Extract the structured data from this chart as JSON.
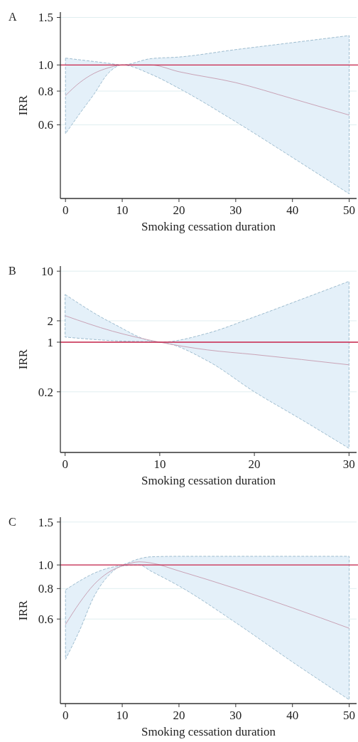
{
  "chart_data": [
    {
      "type": "line",
      "title": "A",
      "xlabel": "Smoking cessation duration",
      "ylabel": "IRR",
      "log": "y",
      "grid": "y",
      "xlim": [
        -0.9,
        51.3
      ],
      "xticks": [
        0,
        10,
        20,
        30,
        40,
        50
      ],
      "ylim": [
        0.32,
        1.57
      ],
      "yticks": [
        1.5,
        {
          "value": 1,
          "label": "1.0"
        },
        0.8,
        0.6
      ],
      "ref_lines": [
        {
          "axis": "y",
          "value": 1,
          "color": "#c8234a"
        }
      ],
      "series": [
        {
          "color": "#c9a3b6",
          "x": [
            0,
            2.5,
            5,
            7.5,
            10,
            15,
            20,
            30,
            40,
            50
          ],
          "values": [
            0.77,
            0.86,
            0.93,
            0.975,
            1.0,
            1.0,
            0.944,
            0.86,
            0.75,
            0.652
          ],
          "lower": [
            0.556,
            0.66,
            0.778,
            0.93,
            1.0,
            0.925,
            0.819,
            0.616,
            0.454,
            0.333
          ],
          "upper": [
            1.06,
            1.045,
            1.03,
            1.015,
            1.0,
            1.055,
            1.07,
            1.14,
            1.21,
            1.285
          ]
        }
      ]
    },
    {
      "type": "line",
      "title": "B",
      "xlabel": "Smoking cessation duration",
      "ylabel": "IRR",
      "log": "y",
      "grid": "y",
      "xlim": [
        -0.5,
        30.8
      ],
      "xticks": [
        0,
        10,
        20,
        30
      ],
      "ylim": [
        0.028,
        11.8
      ],
      "yticks": [
        10,
        2,
        1,
        0.2
      ],
      "ref_lines": [
        {
          "axis": "y",
          "value": 1,
          "color": "#c8234a"
        }
      ],
      "series": [
        {
          "color": "#c9a3b6",
          "x": [
            0,
            5,
            10,
            15,
            20,
            25,
            30
          ],
          "values": [
            2.36,
            1.43,
            1.0,
            0.78,
            0.67,
            0.57,
            0.48
          ],
          "lower": [
            1.18,
            1.05,
            1.0,
            0.55,
            0.2,
            0.081,
            0.032
          ],
          "upper": [
            4.7,
            1.85,
            1.0,
            1.33,
            2.27,
            4.03,
            7.2
          ]
        }
      ]
    },
    {
      "type": "line",
      "title": "C",
      "xlabel": "Smoking cessation duration",
      "ylabel": "IRR",
      "log": "y",
      "grid": "y",
      "xlim": [
        -0.9,
        51.3
      ],
      "xticks": [
        0,
        10,
        20,
        30,
        40,
        50
      ],
      "ylim": [
        0.27,
        1.57
      ],
      "yticks": [
        1.5,
        {
          "value": 1,
          "label": "1.0"
        },
        0.8,
        0.6
      ],
      "ref_lines": [
        {
          "axis": "y",
          "value": 1,
          "color": "#c8234a"
        }
      ],
      "series": [
        {
          "color": "#c9a3b6",
          "x": [
            0,
            2.5,
            5,
            7.5,
            10,
            13,
            15,
            20,
            30,
            40,
            50
          ],
          "values": [
            0.57,
            0.7,
            0.83,
            0.93,
            0.99,
            1.03,
            1.02,
            0.945,
            0.8,
            0.667,
            0.55
          ],
          "lower": [
            0.41,
            0.54,
            0.74,
            0.9,
            0.99,
            1.0,
            0.945,
            0.82,
            0.58,
            0.4,
            0.28
          ],
          "upper": [
            0.79,
            0.86,
            0.924,
            0.97,
            1.0,
            1.06,
            1.08,
            1.085,
            1.085,
            1.085,
            1.085
          ]
        }
      ]
    }
  ]
}
